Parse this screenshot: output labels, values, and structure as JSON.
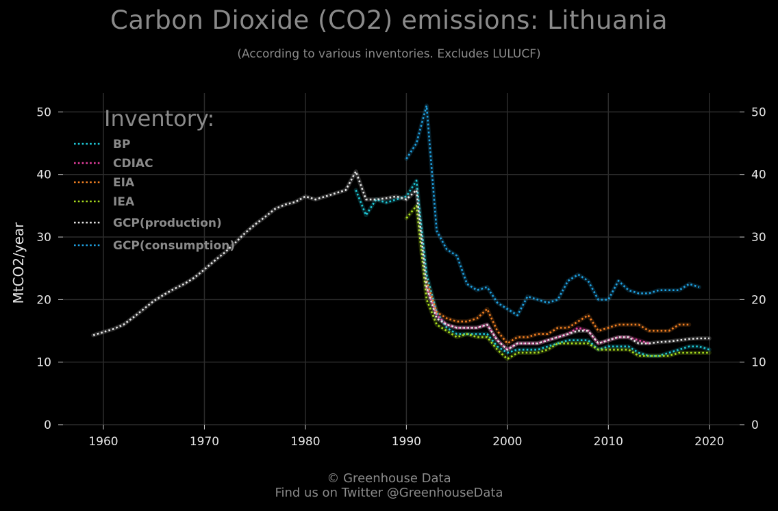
{
  "header": {
    "title": "Carbon Dioxide (CO2) emissions: Lithuania",
    "subtitle": "(According to various inventories. Excludes LULUCF)"
  },
  "footer": {
    "line1": "© Greenhouse Data",
    "line2": "Find us on Twitter @GreenhouseData"
  },
  "chart_data": {
    "type": "line",
    "title": "Carbon Dioxide (CO2) emissions: Lithuania",
    "subtitle": "(According to various inventories. Excludes LULUCF)",
    "ylabel": "MtCO2/year",
    "xlabel": "",
    "xlim": [
      1956,
      2023
    ],
    "ylim": [
      0,
      53
    ],
    "x_ticks": [
      1960,
      1970,
      1980,
      1990,
      2000,
      2010,
      2020
    ],
    "y_ticks": [
      0,
      10,
      20,
      30,
      40,
      50
    ],
    "grid": true,
    "secondary_y_axis": true,
    "legend_title": "Inventory:",
    "legend_position": "top-left",
    "line_style": "dotted",
    "background": "#000000",
    "series": [
      {
        "name": "BP",
        "color": "#1ec8d8",
        "points": [
          [
            1985,
            37.5
          ],
          [
            1986,
            33.5
          ],
          [
            1987,
            36
          ],
          [
            1988,
            35.5
          ],
          [
            1989,
            36
          ],
          [
            1990,
            36.5
          ],
          [
            1991,
            39
          ],
          [
            1992,
            24
          ],
          [
            1993,
            18
          ],
          [
            1994,
            15.5
          ],
          [
            1995,
            14.5
          ],
          [
            1996,
            14.5
          ],
          [
            1997,
            14.5
          ],
          [
            1998,
            14.5
          ],
          [
            1999,
            12.5
          ],
          [
            2000,
            11.5
          ],
          [
            2001,
            12
          ],
          [
            2002,
            12
          ],
          [
            2003,
            12
          ],
          [
            2004,
            12.5
          ],
          [
            2005,
            13
          ],
          [
            2006,
            13.5
          ],
          [
            2007,
            13.5
          ],
          [
            2008,
            13.5
          ],
          [
            2009,
            12
          ],
          [
            2010,
            12.5
          ],
          [
            2011,
            12.5
          ],
          [
            2012,
            12.5
          ],
          [
            2013,
            11.5
          ],
          [
            2014,
            11
          ],
          [
            2015,
            11
          ],
          [
            2016,
            11.5
          ],
          [
            2017,
            12
          ],
          [
            2018,
            12.5
          ],
          [
            2019,
            12.5
          ],
          [
            2020,
            12
          ]
        ]
      },
      {
        "name": "CDIAC",
        "color": "#e83fa0",
        "points": [
          [
            1992,
            22
          ],
          [
            1993,
            17.5
          ],
          [
            1994,
            16
          ],
          [
            1995,
            15.5
          ],
          [
            1996,
            15.5
          ],
          [
            1997,
            15.5
          ],
          [
            1998,
            16
          ],
          [
            1999,
            13.5
          ],
          [
            2000,
            12
          ],
          [
            2001,
            13
          ],
          [
            2002,
            13
          ],
          [
            2003,
            13
          ],
          [
            2004,
            13.5
          ],
          [
            2005,
            14
          ],
          [
            2006,
            14.5
          ],
          [
            2007,
            15.5
          ],
          [
            2008,
            15
          ],
          [
            2009,
            13
          ],
          [
            2010,
            13.5
          ],
          [
            2011,
            14
          ],
          [
            2012,
            14
          ],
          [
            2013,
            13.5
          ],
          [
            2014,
            13
          ]
        ]
      },
      {
        "name": "EIA",
        "color": "#f07f22",
        "points": [
          [
            1992,
            23
          ],
          [
            1993,
            18
          ],
          [
            1994,
            17
          ],
          [
            1995,
            16.5
          ],
          [
            1996,
            16.5
          ],
          [
            1997,
            17
          ],
          [
            1998,
            18.5
          ],
          [
            1999,
            15
          ],
          [
            2000,
            13
          ],
          [
            2001,
            14
          ],
          [
            2002,
            14
          ],
          [
            2003,
            14.5
          ],
          [
            2004,
            14.5
          ],
          [
            2005,
            15.5
          ],
          [
            2006,
            15.5
          ],
          [
            2007,
            16.5
          ],
          [
            2008,
            17.5
          ],
          [
            2009,
            15
          ],
          [
            2010,
            15.5
          ],
          [
            2011,
            16
          ],
          [
            2012,
            16
          ],
          [
            2013,
            16
          ],
          [
            2014,
            15
          ],
          [
            2015,
            15
          ],
          [
            2016,
            15
          ],
          [
            2017,
            16
          ],
          [
            2018,
            16
          ]
        ]
      },
      {
        "name": "IEA",
        "color": "#a8dc1e",
        "points": [
          [
            1990,
            33
          ],
          [
            1991,
            35
          ],
          [
            1992,
            20
          ],
          [
            1993,
            16
          ],
          [
            1994,
            15
          ],
          [
            1995,
            14
          ],
          [
            1996,
            14.5
          ],
          [
            1997,
            14
          ],
          [
            1998,
            14
          ],
          [
            1999,
            12
          ],
          [
            2000,
            10.5
          ],
          [
            2001,
            11.5
          ],
          [
            2002,
            11.5
          ],
          [
            2003,
            11.5
          ],
          [
            2004,
            12
          ],
          [
            2005,
            13
          ],
          [
            2006,
            13
          ],
          [
            2007,
            13
          ],
          [
            2008,
            13
          ],
          [
            2009,
            12
          ],
          [
            2010,
            12
          ],
          [
            2011,
            12
          ],
          [
            2012,
            12
          ],
          [
            2013,
            11
          ],
          [
            2014,
            11
          ],
          [
            2015,
            11
          ],
          [
            2016,
            11
          ],
          [
            2017,
            11.5
          ],
          [
            2018,
            11.5
          ],
          [
            2019,
            11.5
          ],
          [
            2020,
            11.5
          ]
        ]
      },
      {
        "name": "GCP(production)",
        "color": "#e6e6e6",
        "points": [
          [
            1959,
            14.3
          ],
          [
            1960,
            14.8
          ],
          [
            1961,
            15.3
          ],
          [
            1962,
            16
          ],
          [
            1963,
            17.2
          ],
          [
            1964,
            18.5
          ],
          [
            1965,
            19.8
          ],
          [
            1966,
            20.8
          ],
          [
            1967,
            21.7
          ],
          [
            1968,
            22.5
          ],
          [
            1969,
            23.5
          ],
          [
            1970,
            24.8
          ],
          [
            1971,
            26.2
          ],
          [
            1972,
            27.5
          ],
          [
            1973,
            29
          ],
          [
            1974,
            30.6
          ],
          [
            1975,
            32
          ],
          [
            1976,
            33.2
          ],
          [
            1977,
            34.5
          ],
          [
            1978,
            35.2
          ],
          [
            1979,
            35.6
          ],
          [
            1980,
            36.5
          ],
          [
            1981,
            36
          ],
          [
            1982,
            36.5
          ],
          [
            1983,
            37
          ],
          [
            1984,
            37.5
          ],
          [
            1985,
            40.5
          ],
          [
            1986,
            36
          ],
          [
            1987,
            36
          ],
          [
            1988,
            36.2
          ],
          [
            1989,
            36.5
          ],
          [
            1990,
            36
          ],
          [
            1991,
            37.5
          ],
          [
            1992,
            22
          ],
          [
            1993,
            17
          ],
          [
            1994,
            16
          ],
          [
            1995,
            15.5
          ],
          [
            1996,
            15.5
          ],
          [
            1997,
            15.5
          ],
          [
            1998,
            16
          ],
          [
            1999,
            13.5
          ],
          [
            2000,
            12
          ],
          [
            2001,
            13
          ],
          [
            2002,
            13
          ],
          [
            2003,
            13
          ],
          [
            2004,
            13.5
          ],
          [
            2005,
            14
          ],
          [
            2006,
            14.5
          ],
          [
            2007,
            15
          ],
          [
            2008,
            15
          ],
          [
            2009,
            13
          ],
          [
            2010,
            13.5
          ],
          [
            2011,
            14
          ],
          [
            2012,
            14
          ],
          [
            2013,
            13
          ],
          [
            2014,
            13
          ],
          [
            2015,
            13.2
          ],
          [
            2016,
            13.3
          ],
          [
            2017,
            13.5
          ],
          [
            2018,
            13.7
          ],
          [
            2019,
            13.8
          ],
          [
            2020,
            13.8
          ]
        ]
      },
      {
        "name": "GCP(consumption)",
        "color": "#1fa0e0",
        "points": [
          [
            1990,
            42.5
          ],
          [
            1991,
            45
          ],
          [
            1992,
            51
          ],
          [
            1993,
            31
          ],
          [
            1994,
            28
          ],
          [
            1995,
            27
          ],
          [
            1996,
            22.5
          ],
          [
            1997,
            21.5
          ],
          [
            1998,
            22
          ],
          [
            1999,
            19.5
          ],
          [
            2000,
            18.5
          ],
          [
            2001,
            17.5
          ],
          [
            2002,
            20.5
          ],
          [
            2003,
            20
          ],
          [
            2004,
            19.5
          ],
          [
            2005,
            20
          ],
          [
            2006,
            23
          ],
          [
            2007,
            24
          ],
          [
            2008,
            23
          ],
          [
            2009,
            20
          ],
          [
            2010,
            20
          ],
          [
            2011,
            23
          ],
          [
            2012,
            21.5
          ],
          [
            2013,
            21
          ],
          [
            2014,
            21
          ],
          [
            2015,
            21.5
          ],
          [
            2016,
            21.5
          ],
          [
            2017,
            21.5
          ],
          [
            2018,
            22.5
          ],
          [
            2019,
            22
          ]
        ]
      }
    ]
  }
}
